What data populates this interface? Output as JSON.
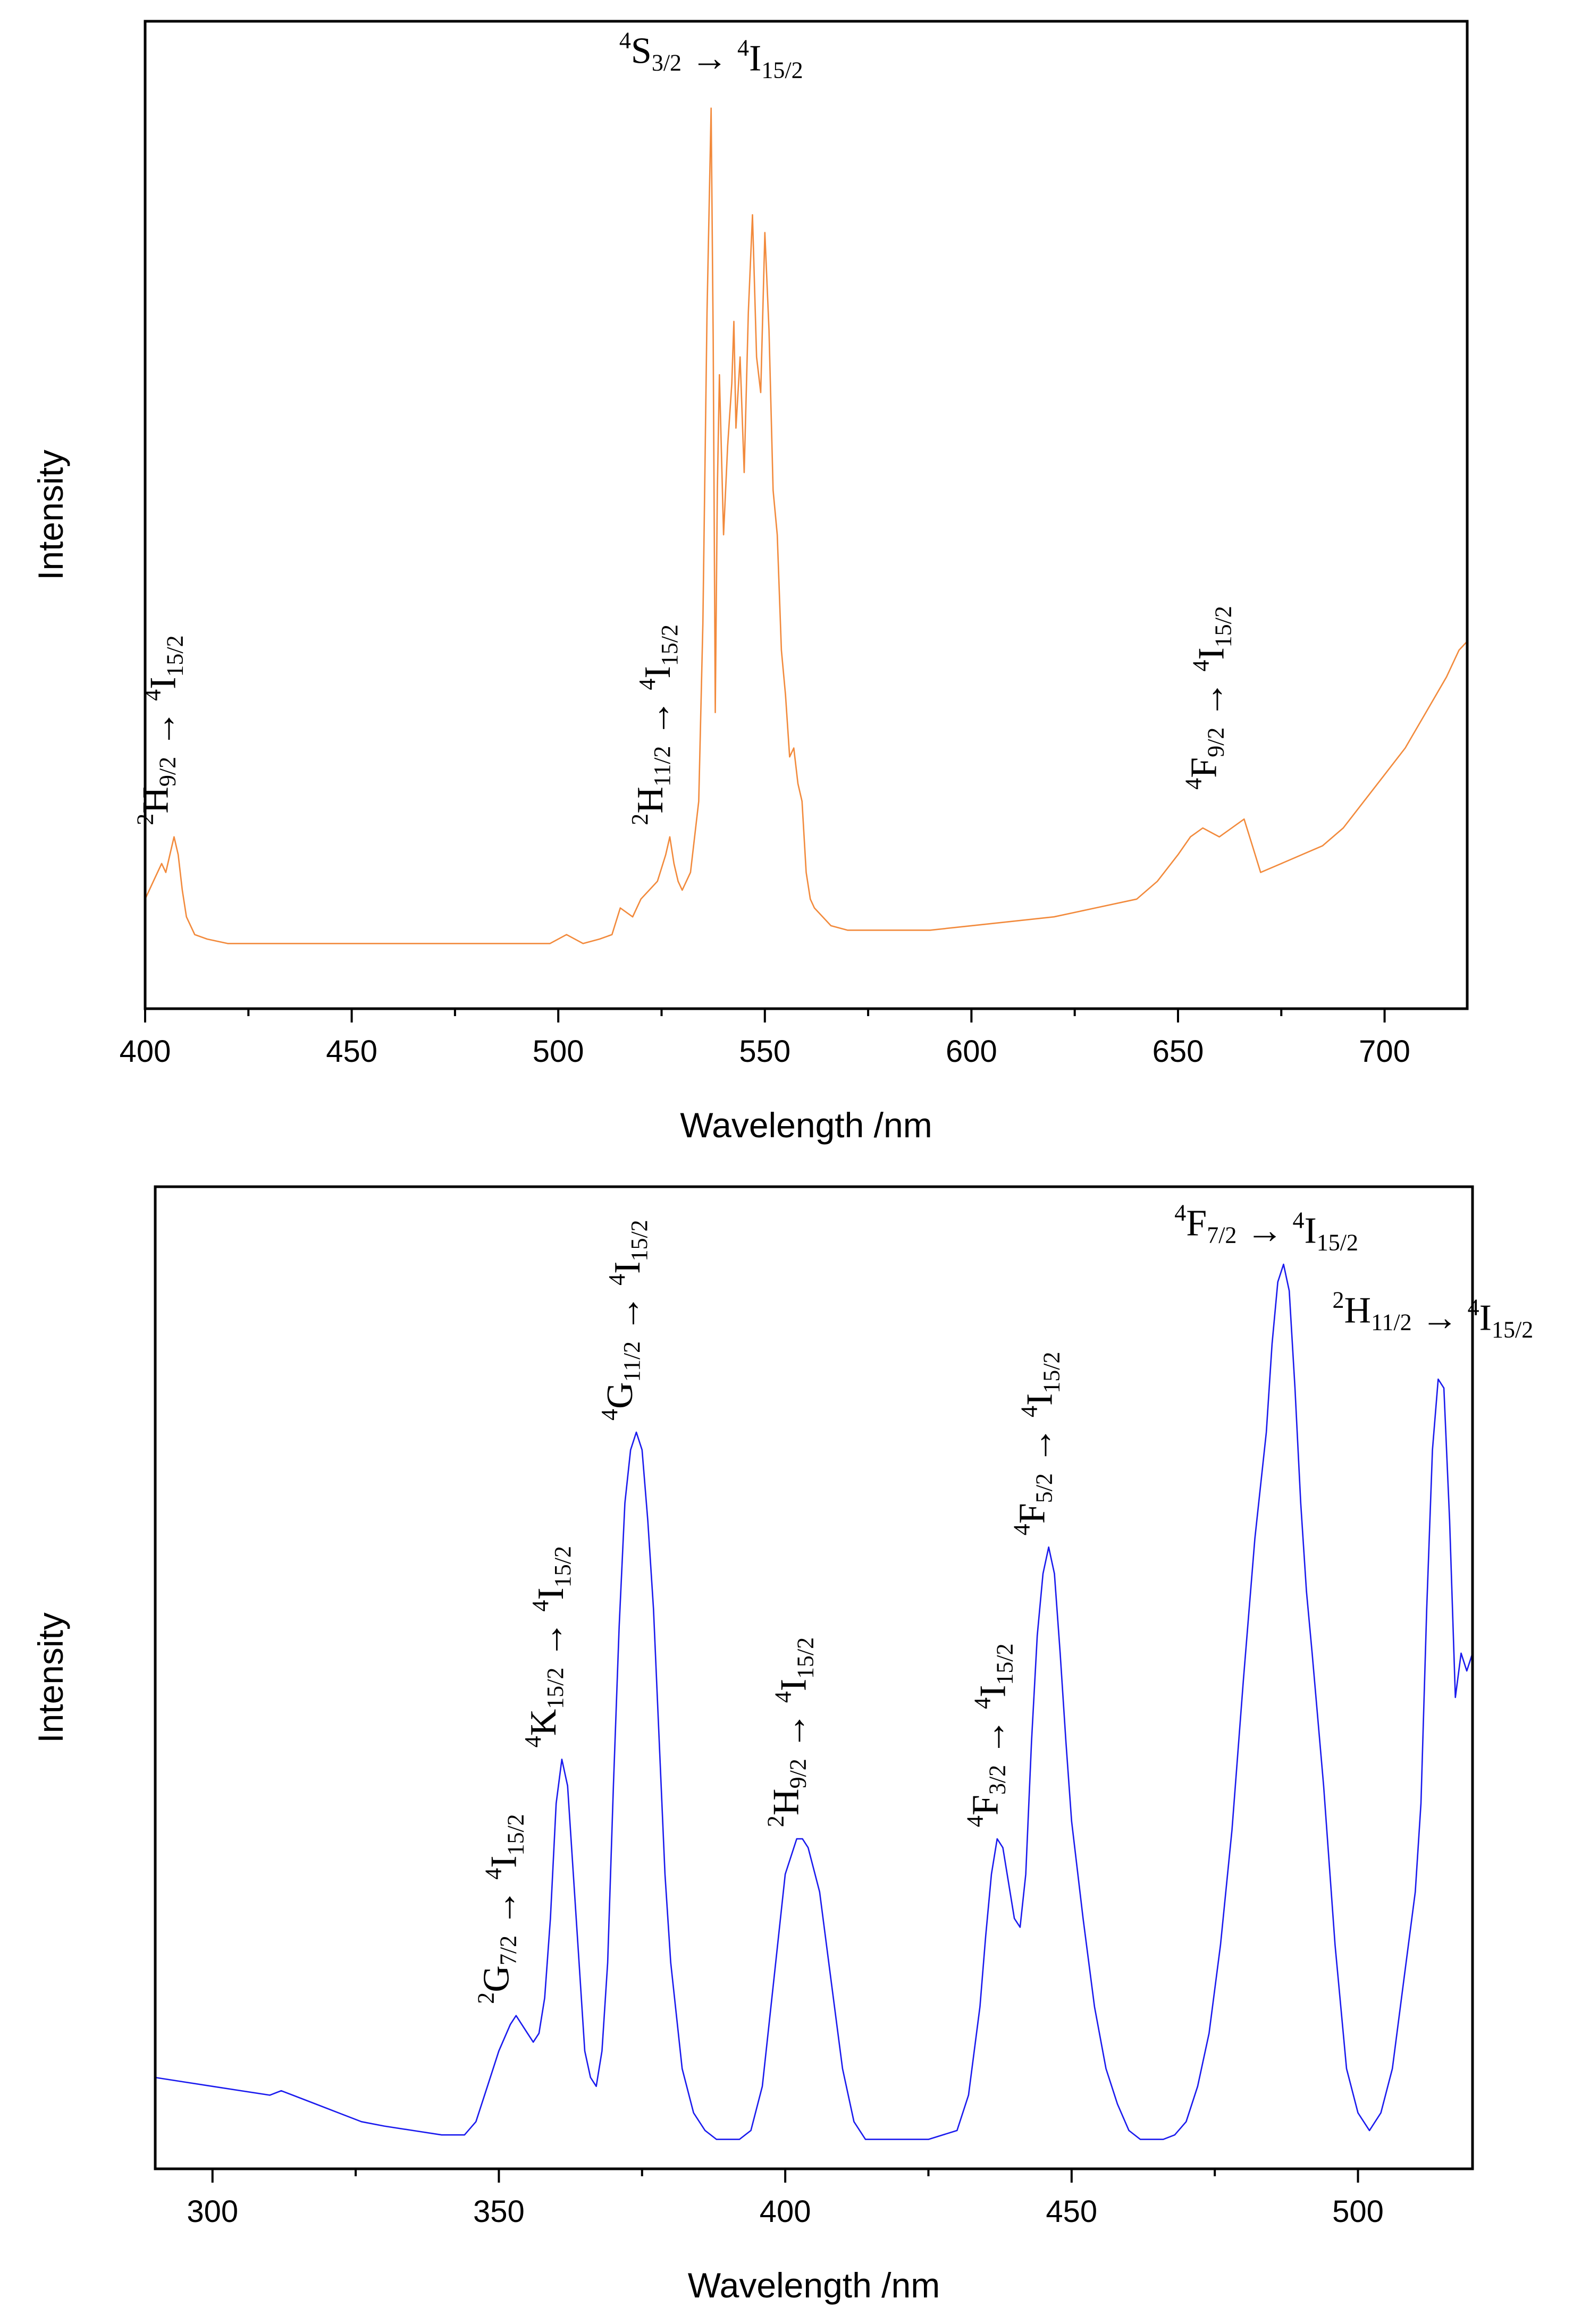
{
  "chart_data": [
    {
      "type": "line",
      "name": "emission-spectrum",
      "xlabel": "Wavelength /nm",
      "ylabel": "Intensity",
      "xlim": [
        400,
        720
      ],
      "ylim": [
        0,
        1
      ],
      "y_ticks_shown": false,
      "x_ticks": [
        400,
        450,
        500,
        550,
        600,
        650,
        700
      ],
      "x_tick_labels": [
        "400",
        "450",
        "500",
        "550",
        "600",
        "650",
        "700"
      ],
      "series": [
        {
          "name": "emission",
          "color": "#f28a3c",
          "x": [
            400,
            402,
            404,
            405,
            406,
            407,
            408,
            409,
            410,
            412,
            415,
            420,
            430,
            440,
            450,
            460,
            470,
            480,
            490,
            498,
            502,
            506,
            510,
            513,
            515,
            518,
            520,
            522,
            524,
            526,
            527,
            528,
            529,
            530,
            532,
            534,
            535,
            536,
            537,
            537.5,
            538,
            538.5,
            539,
            540,
            541,
            542,
            542.5,
            543,
            544,
            545,
            546,
            547,
            548,
            549,
            550,
            551,
            552,
            553,
            554,
            555,
            556,
            557,
            558,
            559,
            560,
            561,
            562,
            564,
            566,
            570,
            575,
            580,
            590,
            600,
            610,
            620,
            630,
            640,
            645,
            650,
            653,
            656,
            660,
            663,
            666,
            668,
            670,
            675,
            680,
            685,
            690,
            695,
            700,
            705,
            710,
            715,
            718,
            720
          ],
          "y": [
            0.09,
            0.11,
            0.13,
            0.12,
            0.14,
            0.16,
            0.14,
            0.1,
            0.07,
            0.05,
            0.045,
            0.04,
            0.04,
            0.04,
            0.04,
            0.04,
            0.04,
            0.04,
            0.04,
            0.04,
            0.05,
            0.04,
            0.045,
            0.05,
            0.08,
            0.07,
            0.09,
            0.1,
            0.11,
            0.14,
            0.16,
            0.13,
            0.11,
            0.1,
            0.12,
            0.2,
            0.4,
            0.75,
            0.98,
            0.72,
            0.3,
            0.55,
            0.68,
            0.5,
            0.6,
            0.67,
            0.74,
            0.62,
            0.7,
            0.57,
            0.75,
            0.86,
            0.7,
            0.66,
            0.84,
            0.73,
            0.55,
            0.5,
            0.37,
            0.32,
            0.25,
            0.26,
            0.22,
            0.2,
            0.12,
            0.09,
            0.08,
            0.07,
            0.06,
            0.055,
            0.055,
            0.055,
            0.055,
            0.06,
            0.065,
            0.07,
            0.08,
            0.09,
            0.11,
            0.14,
            0.16,
            0.17,
            0.16,
            0.17,
            0.18,
            0.15,
            0.12,
            0.13,
            0.14,
            0.15,
            0.17,
            0.2,
            0.23,
            0.26,
            0.3,
            0.34,
            0.37,
            0.38
          ]
        }
      ],
      "annotations": [
        {
          "x": 407,
          "y": 0.16,
          "orientation": "vertical",
          "initial": {
            "sup": "2",
            "base": "H",
            "sub": "9/2"
          },
          "final": {
            "sup": "4",
            "base": "I",
            "sub": "15/2"
          }
        },
        {
          "x": 527,
          "y": 0.16,
          "orientation": "vertical",
          "initial": {
            "sup": "2",
            "base": "H",
            "sub": "11/2"
          },
          "final": {
            "sup": "4",
            "base": "I",
            "sub": "15/2"
          }
        },
        {
          "x": 537,
          "y": 1.02,
          "orientation": "horizontal",
          "initial": {
            "sup": "4",
            "base": "S",
            "sub": "3/2"
          },
          "final": {
            "sup": "4",
            "base": "I",
            "sub": "15/2"
          }
        },
        {
          "x": 661,
          "y": 0.2,
          "orientation": "vertical",
          "initial": {
            "sup": "4",
            "base": "F",
            "sub": "9/2"
          },
          "final": {
            "sup": "4",
            "base": "I",
            "sub": "15/2"
          }
        }
      ]
    },
    {
      "type": "line",
      "name": "excitation-spectrum",
      "xlabel": "Wavelength /nm",
      "ylabel": "Intensity",
      "xlim": [
        290,
        520
      ],
      "ylim": [
        0,
        1
      ],
      "y_ticks_shown": false,
      "x_ticks": [
        300,
        350,
        400,
        450,
        500
      ],
      "x_tick_labels": [
        "300",
        "350",
        "400",
        "450",
        "500"
      ],
      "series": [
        {
          "name": "excitation",
          "color": "#1a1aee",
          "x": [
            290,
            295,
            300,
            305,
            310,
            312,
            314,
            318,
            322,
            326,
            330,
            335,
            340,
            344,
            346,
            348,
            350,
            352,
            353,
            354,
            355,
            356,
            357,
            358,
            359,
            360,
            361,
            362,
            363,
            364,
            365,
            366,
            367,
            368,
            369,
            370,
            371,
            372,
            373,
            374,
            375,
            376,
            377,
            378,
            379,
            380,
            382,
            384,
            386,
            388,
            390,
            392,
            394,
            396,
            398,
            400,
            402,
            403,
            404,
            406,
            408,
            410,
            412,
            414,
            416,
            418,
            420,
            425,
            430,
            432,
            434,
            435,
            436,
            437,
            438,
            439,
            440,
            441,
            442,
            443,
            444,
            445,
            446,
            447,
            448,
            449,
            450,
            452,
            454,
            456,
            458,
            460,
            462,
            464,
            466,
            468,
            470,
            472,
            474,
            476,
            478,
            480,
            482,
            484,
            485,
            486,
            487,
            488,
            489,
            490,
            491,
            492,
            494,
            496,
            498,
            500,
            502,
            504,
            506,
            508,
            510,
            511,
            512,
            513,
            514,
            515,
            516,
            517,
            518,
            519,
            520
          ],
          "y": [
            0.07,
            0.065,
            0.06,
            0.055,
            0.05,
            0.055,
            0.05,
            0.04,
            0.03,
            0.02,
            0.015,
            0.01,
            0.005,
            0.005,
            0.02,
            0.06,
            0.1,
            0.13,
            0.14,
            0.13,
            0.12,
            0.11,
            0.12,
            0.16,
            0.25,
            0.38,
            0.43,
            0.4,
            0.3,
            0.2,
            0.1,
            0.07,
            0.06,
            0.1,
            0.2,
            0.4,
            0.58,
            0.72,
            0.78,
            0.8,
            0.78,
            0.7,
            0.6,
            0.45,
            0.3,
            0.2,
            0.08,
            0.03,
            0.01,
            0,
            0,
            0,
            0.01,
            0.06,
            0.18,
            0.3,
            0.34,
            0.34,
            0.33,
            0.28,
            0.18,
            0.08,
            0.02,
            0,
            0,
            0,
            0,
            0,
            0.01,
            0.05,
            0.15,
            0.23,
            0.3,
            0.34,
            0.33,
            0.29,
            0.25,
            0.24,
            0.3,
            0.45,
            0.57,
            0.64,
            0.67,
            0.64,
            0.55,
            0.45,
            0.36,
            0.25,
            0.15,
            0.08,
            0.04,
            0.01,
            0,
            0,
            0,
            0.005,
            0.02,
            0.06,
            0.12,
            0.22,
            0.35,
            0.52,
            0.68,
            0.8,
            0.9,
            0.97,
            0.99,
            0.96,
            0.85,
            0.72,
            0.62,
            0.55,
            0.4,
            0.22,
            0.08,
            0.03,
            0.01,
            0.03,
            0.08,
            0.18,
            0.28,
            0.38,
            0.6,
            0.78,
            0.86,
            0.85,
            0.7,
            0.5,
            0.55,
            0.53,
            0.55
          ]
        }
      ],
      "annotations": [
        {
          "x": 353,
          "y": 0.14,
          "orientation": "vertical",
          "initial": {
            "sup": "2",
            "base": "G",
            "sub": "7/2"
          },
          "final": {
            "sup": "4",
            "base": "I",
            "sub": "15/2"
          }
        },
        {
          "x": 361,
          "y": 0.43,
          "orientation": "vertical",
          "initial": {
            "sup": "4",
            "base": "K",
            "sub": "15/2"
          },
          "final": {
            "sup": "4",
            "base": "I",
            "sub": "15/2"
          }
        },
        {
          "x": 374,
          "y": 0.8,
          "orientation": "vertical",
          "initial": {
            "sup": "4",
            "base": "G",
            "sub": "11/2"
          },
          "final": {
            "sup": "4",
            "base": "I",
            "sub": "15/2"
          }
        },
        {
          "x": 403,
          "y": 0.34,
          "orientation": "vertical",
          "initial": {
            "sup": "2",
            "base": "H",
            "sub": "9/2"
          },
          "final": {
            "sup": "4",
            "base": "I",
            "sub": "15/2"
          }
        },
        {
          "x": 438,
          "y": 0.34,
          "orientation": "vertical",
          "initial": {
            "sup": "4",
            "base": "F",
            "sub": "3/2"
          },
          "final": {
            "sup": "4",
            "base": "I",
            "sub": "15/2"
          }
        },
        {
          "x": 446,
          "y": 0.67,
          "orientation": "vertical",
          "initial": {
            "sup": "4",
            "base": "F",
            "sub": "5/2"
          },
          "final": {
            "sup": "4",
            "base": "I",
            "sub": "15/2"
          }
        },
        {
          "x": 484,
          "y": 1.0,
          "orientation": "horizontal",
          "initial": {
            "sup": "4",
            "base": "F",
            "sub": "7/2"
          },
          "final": {
            "sup": "4",
            "base": "I",
            "sub": "15/2"
          }
        },
        {
          "x": 514,
          "y": 0.9,
          "orientation": "horizontal",
          "initial": {
            "sup": "2",
            "base": "H",
            "sub": "11/2"
          },
          "final": {
            "sup": "4",
            "base": "I",
            "sub": "15/2"
          }
        }
      ]
    }
  ]
}
